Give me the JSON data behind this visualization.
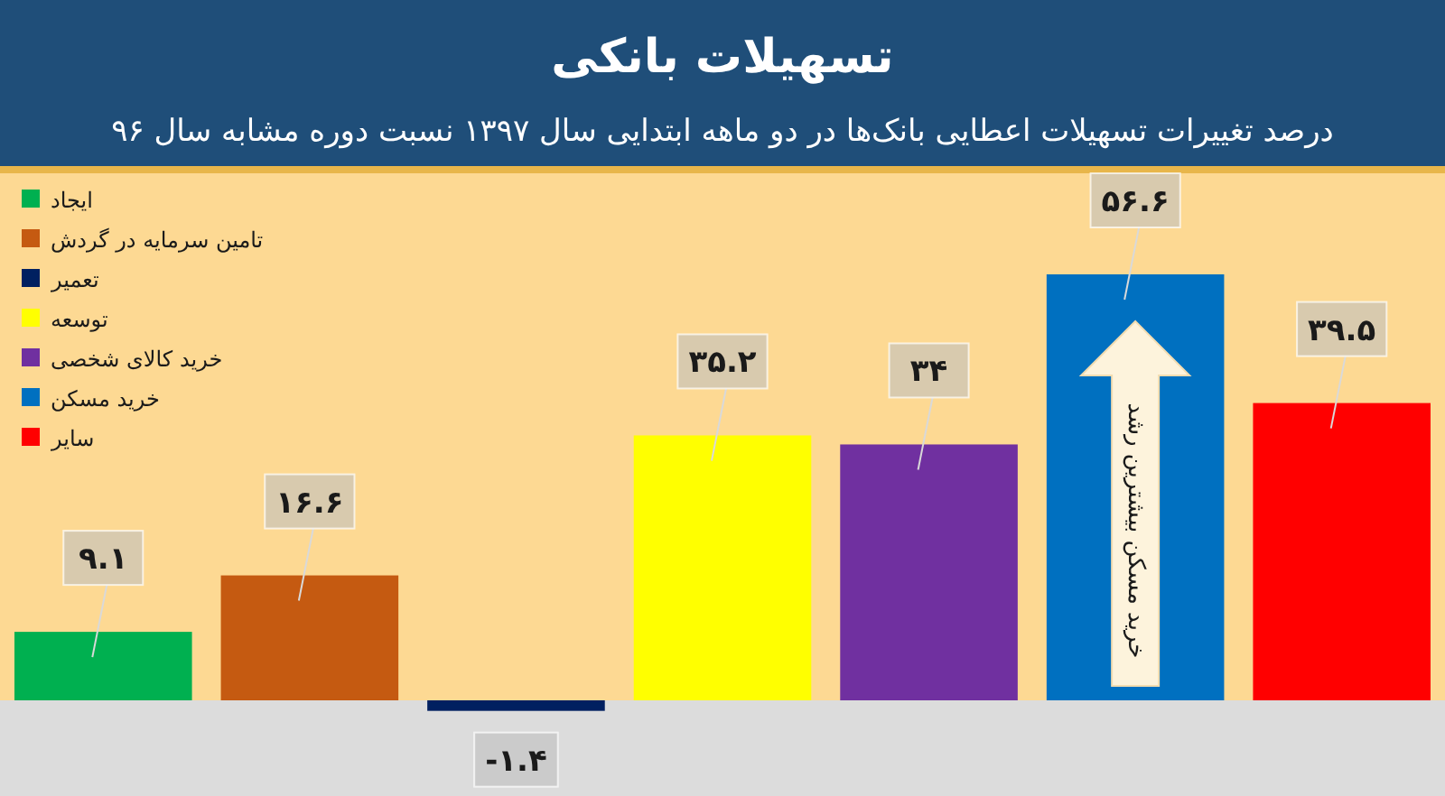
{
  "chart_data": {
    "type": "bar",
    "title": "تسهیلات بانکی",
    "subtitle": "درصد تغییرات تسهیلات اعطایی بانک‌ها در دو ماهه ابتدایی سال ۱۳۹۷ نسبت دوره مشابه سال ۹۶",
    "categories": [
      null
    ],
    "series": [
      {
        "name": "ایجاد",
        "color": "#00b050",
        "values": [
          9.1
        ],
        "value_labels": [
          "۹.۱"
        ]
      },
      {
        "name": "تامین سرمایه در گردش",
        "color": "#c55a11",
        "values": [
          16.6
        ],
        "value_labels": [
          "۱۶.۶"
        ]
      },
      {
        "name": "تعمیر",
        "color": "#002060",
        "values": [
          -1.4
        ],
        "value_labels": [
          "-۱.۴"
        ]
      },
      {
        "name": "توسعه",
        "color": "#ffff00",
        "values": [
          35.2
        ],
        "value_labels": [
          "۳۵.۲"
        ]
      },
      {
        "name": "خرید کالای شخصی",
        "color": "#7030a0",
        "values": [
          34
        ],
        "value_labels": [
          "۳۴"
        ]
      },
      {
        "name": "خرید مسکن",
        "color": "#0070c0",
        "values": [
          56.6
        ],
        "value_labels": [
          "۵۶.۶"
        ]
      },
      {
        "name": "سایر",
        "color": "#ff0000",
        "values": [
          39.5
        ],
        "value_labels": [
          "۳۹.۵"
        ]
      }
    ],
    "legend": "top left",
    "annotations": [
      "خرید مسکن بیشترین رشد"
    ]
  }
}
